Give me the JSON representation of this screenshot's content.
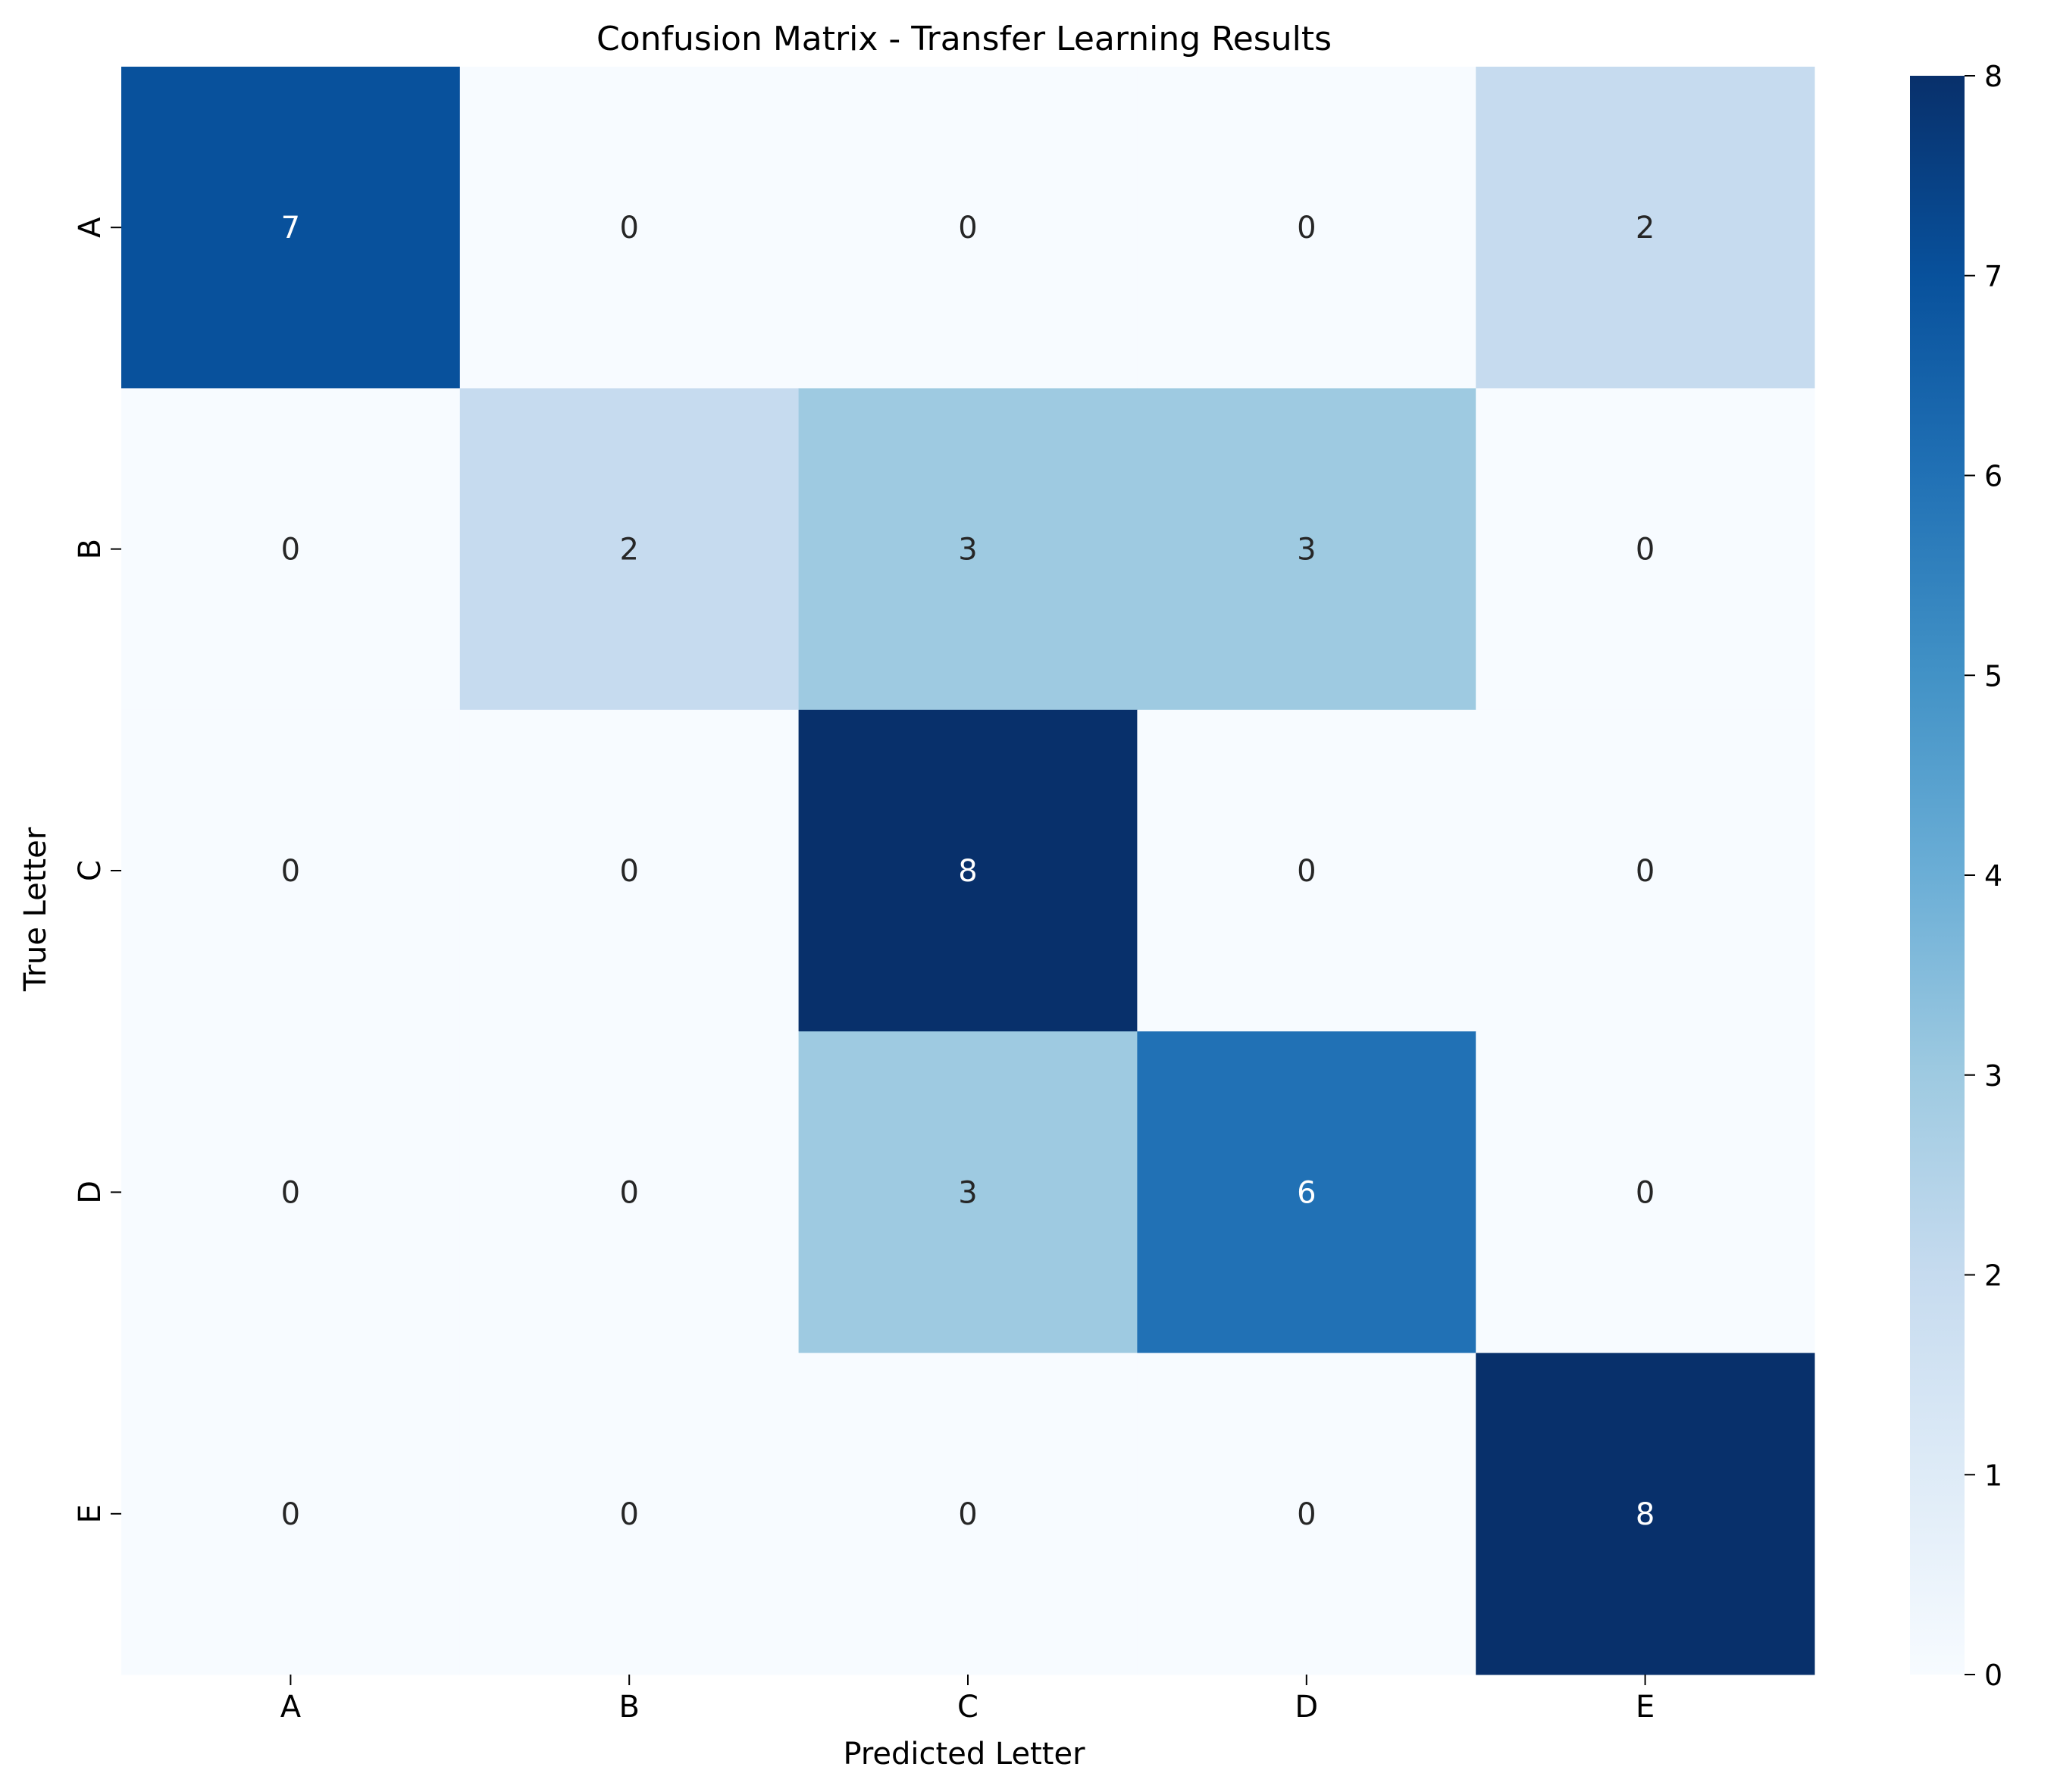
{
  "chart_data": {
    "type": "heatmap",
    "title": "Confusion Matrix - Transfer Learning Results",
    "xlabel": "Predicted Letter",
    "ylabel": "True Letter",
    "x_categories": [
      "A",
      "B",
      "C",
      "D",
      "E"
    ],
    "y_categories": [
      "A",
      "B",
      "C",
      "D",
      "E"
    ],
    "matrix": [
      [
        7,
        0,
        0,
        0,
        2
      ],
      [
        0,
        2,
        3,
        3,
        0
      ],
      [
        0,
        0,
        8,
        0,
        0
      ],
      [
        0,
        0,
        3,
        6,
        0
      ],
      [
        0,
        0,
        0,
        0,
        8
      ]
    ],
    "colormap": "Blues",
    "vmin": 0,
    "vmax": 8,
    "colorbar_ticks": [
      "0",
      "1",
      "2",
      "3",
      "4",
      "5",
      "6",
      "7",
      "8"
    ],
    "grid": false,
    "legend": "colorbar-right"
  }
}
